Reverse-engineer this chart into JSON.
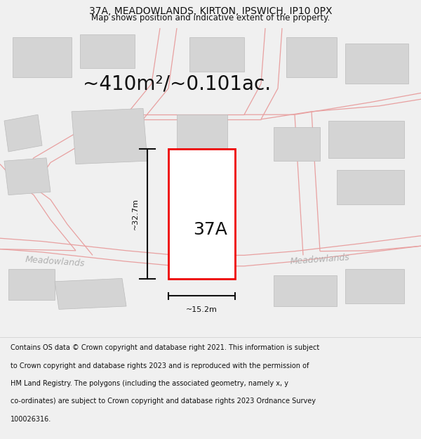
{
  "title_line1": "37A, MEADOWLANDS, KIRTON, IPSWICH, IP10 0PX",
  "title_line2": "Map shows position and indicative extent of the property.",
  "area_text": "~410m²/~0.101ac.",
  "label_37A": "37A",
  "dim_height": "~32.7m",
  "dim_width": "~15.2m",
  "road_label1": "Meadowlands",
  "road_label2": "Meadowlands",
  "footer_lines": [
    "Contains OS data © Crown copyright and database right 2021. This information is subject",
    "to Crown copyright and database rights 2023 and is reproduced with the permission of",
    "HM Land Registry. The polygons (including the associated geometry, namely x, y",
    "co-ordinates) are subject to Crown copyright and database rights 2023 Ordnance Survey",
    "100026316."
  ],
  "bg_color": "#f0f0f0",
  "map_bg": "#ffffff",
  "building_fill": "#d4d4d4",
  "building_edge": "#bbbbbb",
  "road_line_color": "#e8a0a0",
  "plot_border_color": "#ee0000",
  "plot_fill": "#ffffff",
  "dim_line_color": "#111111",
  "text_color": "#111111",
  "road_text_color": "#b0b0b0",
  "title_fontsize": 10,
  "subtitle_fontsize": 8.5,
  "area_fontsize": 20,
  "label_fontsize": 18,
  "dim_fontsize": 8,
  "road_fontsize": 9,
  "footer_fontsize": 7
}
